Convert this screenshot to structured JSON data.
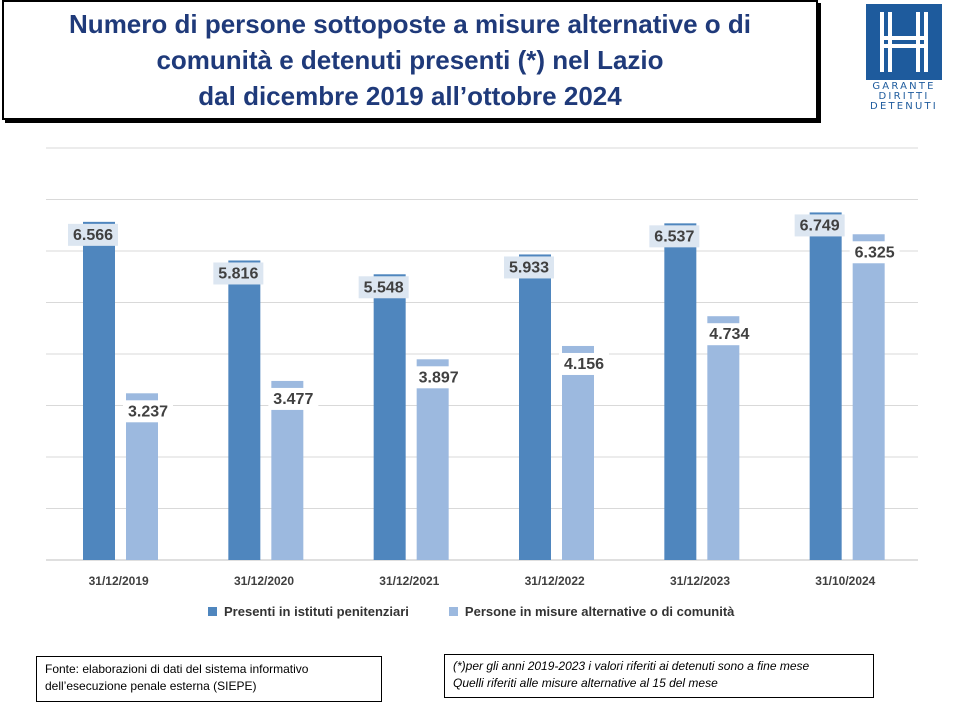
{
  "title": {
    "line1": "Numero di persone sottoposte a misure alternative o di",
    "line2": "comunità  e detenuti presenti (*) nel Lazio",
    "line3": "dal dicembre 2019 all’ottobre 2024"
  },
  "logo": {
    "text_lines": [
      "GARANTE",
      "DIRITTI",
      "DETENUTI"
    ],
    "color": "#1e5b9d",
    "icon": "garante-logo-mark"
  },
  "chart_data": {
    "type": "bar",
    "categories": [
      "31/12/2019",
      "31/12/2020",
      "31/12/2021",
      "31/12/2022",
      "31/12/2023",
      "31/10/2024"
    ],
    "series": [
      {
        "name": "Presenti in istituti penitenziari",
        "values": [
          6566,
          5816,
          5548,
          5933,
          6537,
          6749
        ],
        "color": "#4f86be",
        "labels": [
          "6.566",
          "5.816",
          "5.548",
          "5.933",
          "6.537",
          "6.749"
        ]
      },
      {
        "name": "Persone in misure alternative o di comunità",
        "values": [
          3237,
          3477,
          3897,
          4156,
          4734,
          6325
        ],
        "color": "#9cb9df",
        "labels": [
          "3.237",
          "3.477",
          "3.897",
          "4.156",
          "4.734",
          "6.325"
        ]
      }
    ],
    "ylim": [
      0,
      8000
    ],
    "grid": true,
    "legend": "bottom"
  },
  "notes": {
    "source_line1": "Fonte: elaborazioni di dati del sistema informativo",
    "source_line2": "dell’esecuzione penale esterna (SIEPE)",
    "footnote_line1": "(*)per gli anni 2019-2023  i valori riferiti ai detenuti sono a fine mese",
    "footnote_line2": "Quelli riferiti alle misure alternative al 15 del mese"
  }
}
